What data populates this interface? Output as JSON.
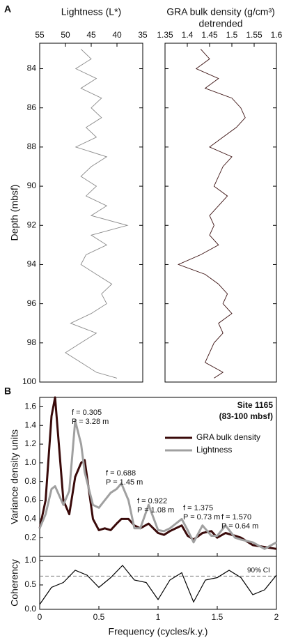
{
  "chart_data": [
    {
      "type": "profile",
      "panel_label": "A",
      "title": "Lightness (L*)",
      "y_label": "Depth (mbsf)",
      "color": "#8a8a8a",
      "y": [
        83,
        83.5,
        84,
        84.5,
        85,
        85.5,
        86,
        86.5,
        87,
        87.5,
        88,
        88.5,
        89,
        89.5,
        90,
        90.5,
        91,
        91.5,
        92,
        92.5,
        93,
        93.5,
        94,
        94.5,
        95,
        95.5,
        96,
        96.5,
        97,
        97.5,
        98,
        98.5,
        99,
        99.5,
        99.8
      ],
      "values": [
        47,
        45,
        48,
        44,
        47,
        43,
        45,
        43,
        46,
        44,
        48,
        42,
        45,
        47,
        44,
        46,
        42,
        45,
        38,
        45,
        42,
        46,
        47,
        44,
        41,
        43,
        42,
        45,
        49,
        44,
        47,
        50,
        47,
        44,
        40
      ],
      "xlim": [
        55,
        35
      ],
      "xticks": [
        55,
        50,
        45,
        40,
        35
      ],
      "ylim": [
        82.7,
        100
      ],
      "yticks": [
        84,
        86,
        88,
        90,
        92,
        94,
        96,
        98,
        100
      ]
    },
    {
      "type": "profile",
      "title": "GRA bulk density (g/cm³)",
      "subtitle": "detrended",
      "color": "#3a1010",
      "y": [
        83,
        83.5,
        84,
        84.5,
        85,
        85.5,
        86,
        86.5,
        87,
        87.5,
        88,
        88.5,
        89,
        89.5,
        90,
        90.5,
        91,
        91.5,
        92,
        92.5,
        93,
        93.5,
        94,
        94.5,
        95,
        95.5,
        96,
        96.5,
        97,
        97.5,
        98,
        98.5,
        99,
        99.5,
        99.8
      ],
      "values": [
        1.43,
        1.45,
        1.42,
        1.47,
        1.44,
        1.5,
        1.52,
        1.53,
        1.51,
        1.48,
        1.45,
        1.5,
        1.48,
        1.47,
        1.46,
        1.49,
        1.47,
        1.45,
        1.46,
        1.45,
        1.47,
        1.43,
        1.38,
        1.44,
        1.47,
        1.49,
        1.48,
        1.5,
        1.47,
        1.48,
        1.46,
        1.45,
        1.44,
        1.48,
        1.46
      ],
      "xlim": [
        1.35,
        1.6
      ],
      "xticks": [
        1.35,
        1.4,
        1.45,
        1.5,
        1.55,
        1.6
      ],
      "ylim": [
        82.7,
        100
      ],
      "yticks": [
        84,
        86,
        88,
        90,
        92,
        94,
        96,
        98,
        100
      ]
    },
    {
      "type": "spectrum",
      "panel_label": "B",
      "y_label": "Variance density units",
      "site": "Site 1165",
      "site_range": "(83-100 mbsf)",
      "x": [
        0,
        0.05,
        0.1,
        0.13,
        0.2,
        0.25,
        0.3,
        0.35,
        0.38,
        0.45,
        0.5,
        0.55,
        0.6,
        0.65,
        0.69,
        0.75,
        0.8,
        0.85,
        0.92,
        1.0,
        1.05,
        1.1,
        1.2,
        1.25,
        1.3,
        1.375,
        1.45,
        1.5,
        1.57,
        1.65,
        1.7,
        1.8,
        1.9,
        2.0
      ],
      "series": [
        {
          "name": "GRA bulk density",
          "color": "#3a0a0a",
          "values": [
            0.3,
            0.6,
            1.5,
            1.7,
            0.6,
            0.45,
            0.85,
            1.0,
            1.03,
            0.4,
            0.28,
            0.3,
            0.28,
            0.35,
            0.4,
            0.4,
            0.33,
            0.3,
            0.35,
            0.25,
            0.23,
            0.27,
            0.33,
            0.22,
            0.18,
            0.25,
            0.27,
            0.2,
            0.25,
            0.22,
            0.2,
            0.12,
            0.1,
            0.08
          ]
        },
        {
          "name": "Lightness",
          "color": "#a0a0a0",
          "values": [
            0.3,
            0.45,
            0.72,
            0.75,
            0.55,
            0.7,
            1.45,
            1.2,
            0.9,
            0.55,
            0.52,
            0.6,
            0.68,
            0.72,
            0.78,
            0.6,
            0.3,
            0.3,
            0.55,
            0.28,
            0.27,
            0.3,
            0.4,
            0.28,
            0.15,
            0.33,
            0.22,
            0.22,
            0.33,
            0.2,
            0.18,
            0.15,
            0.08,
            0.15
          ]
        }
      ],
      "annotations": [
        [
          "f = 0.305",
          "P = 3.28 m"
        ],
        [
          "f = 0.688",
          "P = 1.45 m"
        ],
        [
          "f = 0.922",
          "P = 1.08 m"
        ],
        [
          "f = 1.375",
          "P = 0.73 m"
        ],
        [
          "f = 1.570",
          "P = 0.64 m"
        ]
      ],
      "xlim": [
        0,
        2
      ],
      "xticks": [
        0,
        0.5,
        1,
        1.5,
        2
      ],
      "ylim": [
        0,
        1.7
      ],
      "yticks": [
        0.2,
        0.4,
        0.6,
        0.8,
        {
          "value": 1,
          "label": "1.0"
        },
        1.2,
        1.4,
        1.6
      ]
    },
    {
      "type": "coherency",
      "y_label": "Coherency",
      "x_label": "Frequency (cycles/k.y.)",
      "color": "#000000",
      "x": [
        0,
        0.1,
        0.2,
        0.3,
        0.4,
        0.5,
        0.6,
        0.7,
        0.8,
        0.9,
        1.0,
        1.1,
        1.2,
        1.3,
        1.4,
        1.5,
        1.6,
        1.7,
        1.8,
        1.9,
        2.0
      ],
      "values": [
        0.1,
        0.45,
        0.55,
        0.8,
        0.7,
        0.45,
        0.65,
        0.9,
        0.6,
        0.55,
        0.2,
        0.6,
        0.75,
        0.15,
        0.6,
        0.65,
        0.8,
        0.65,
        0.3,
        0.4,
        0.7
      ],
      "ci": 0.68,
      "ci_label": "90% CI",
      "xlim": [
        0,
        2
      ],
      "xticks": [
        0,
        0.5,
        1,
        1.5,
        2
      ],
      "ylim": [
        0,
        1
      ],
      "yticks": [
        {
          "value": 0,
          "label": "0.0"
        },
        0.5,
        {
          "value": 1,
          "label": "1.0"
        }
      ]
    }
  ]
}
